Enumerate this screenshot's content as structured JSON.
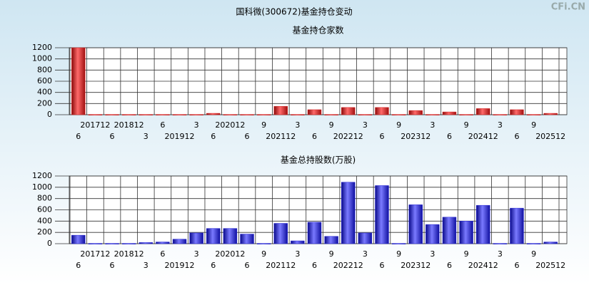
{
  "header": {
    "title": "国科微(300672)基金持仓变动",
    "watermark": "CFi.CN"
  },
  "chart_data": [
    {
      "type": "bar",
      "title": "基金持仓家数",
      "categories": [
        "6",
        "201712",
        "6",
        "201812",
        "3",
        "6",
        "201912",
        "3",
        "6",
        "202012",
        "6",
        "9",
        "202112",
        "3",
        "6",
        "9",
        "202212",
        "3",
        "6",
        "9",
        "202312",
        "3",
        "6",
        "9",
        "202412",
        "3",
        "6",
        "9",
        "202512"
      ],
      "values": [
        1200,
        5,
        5,
        5,
        5,
        5,
        5,
        5,
        25,
        5,
        5,
        5,
        150,
        5,
        90,
        5,
        130,
        5,
        130,
        5,
        75,
        5,
        50,
        5,
        110,
        5,
        90,
        5,
        25
      ],
      "color": "#d42020",
      "ylim": [
        0,
        1200
      ],
      "yticks": [
        0,
        200,
        400,
        600,
        800,
        1000,
        1200
      ],
      "grid": true
    },
    {
      "type": "bar",
      "title": "基金总持股数(万股)",
      "categories": [
        "6",
        "201712",
        "6",
        "201812",
        "3",
        "6",
        "201912",
        "3",
        "6",
        "202012",
        "6",
        "9",
        "202112",
        "3",
        "6",
        "9",
        "202212",
        "3",
        "6",
        "9",
        "202312",
        "3",
        "6",
        "9",
        "202412",
        "3",
        "6",
        "9",
        "202512"
      ],
      "values": [
        150,
        5,
        5,
        5,
        20,
        30,
        80,
        190,
        270,
        270,
        170,
        5,
        360,
        50,
        380,
        130,
        1090,
        190,
        1030,
        5,
        690,
        340,
        470,
        400,
        680,
        5,
        630,
        5,
        30
      ],
      "color": "#2020d4",
      "ylim": [
        0,
        1200
      ],
      "yticks": [
        0,
        200,
        400,
        600,
        800,
        1000,
        1200
      ],
      "grid": true
    }
  ]
}
